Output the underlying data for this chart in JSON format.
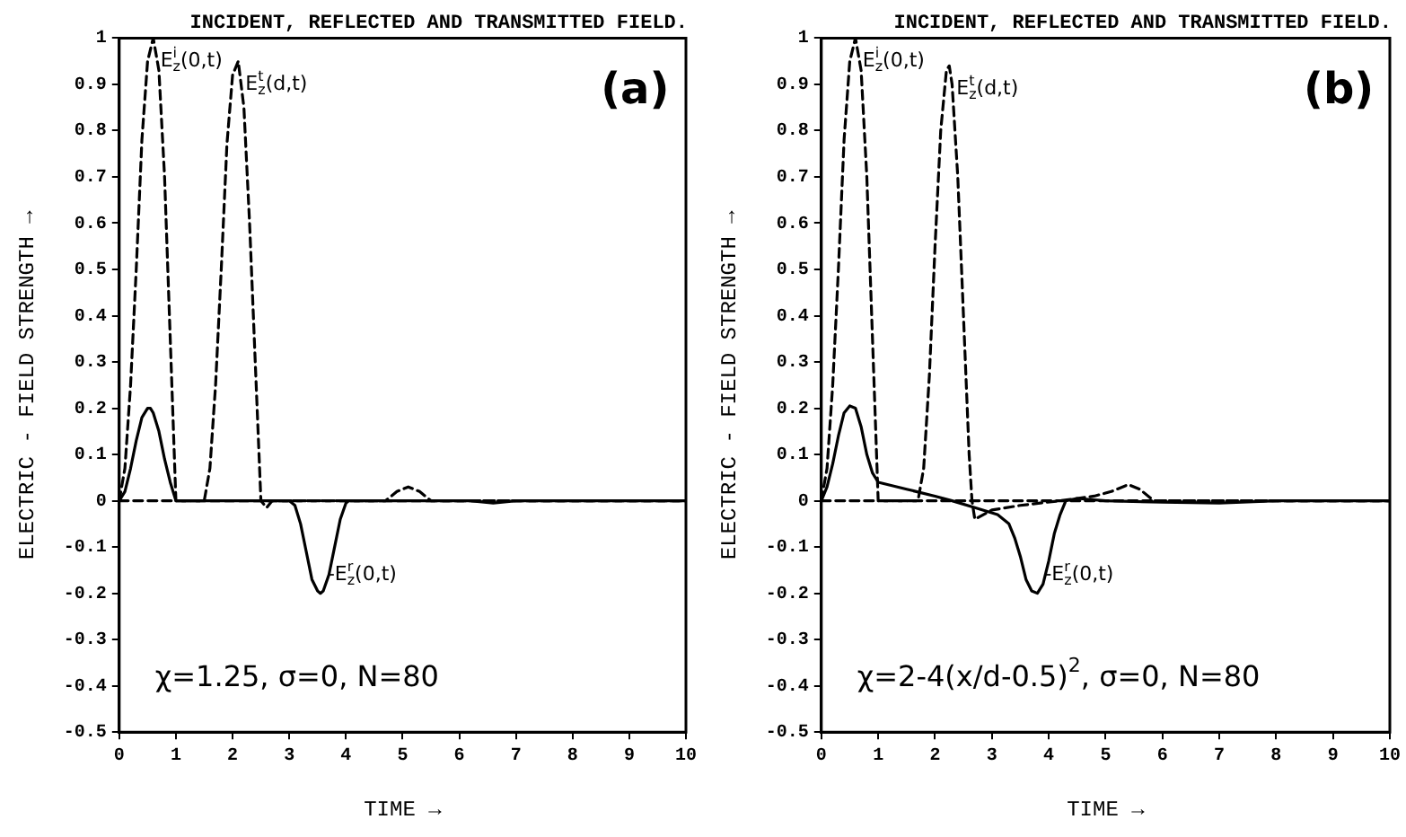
{
  "chart_data": [
    {
      "type": "line",
      "title": "INCIDENT, REFLECTED AND TRANSMITTED FIELD.",
      "xlabel": "TIME →",
      "ylabel": "ELECTRIC - FIELD STRENGTH →",
      "annotations": [
        "(a)",
        "χ=1.25, σ=0, N=80"
      ],
      "xlim": [
        0,
        10
      ],
      "ylim": [
        -0.5,
        1
      ],
      "xticks": [
        0,
        1,
        2,
        3,
        4,
        5,
        6,
        7,
        8,
        9,
        10
      ],
      "yticks": [
        -0.5,
        -0.4,
        -0.3,
        -0.2,
        -0.1,
        0,
        0.1,
        0.2,
        0.3,
        0.4,
        0.5,
        0.6,
        0.7,
        0.8,
        0.9,
        1
      ],
      "grid": false,
      "legend": false,
      "marker": "none",
      "series": [
        {
          "name": "E$^{i}$$_{z}$(0,t)",
          "color": "#000000",
          "line_style": "dashed",
          "x": [
            0,
            0.1,
            0.2,
            0.3,
            0.4,
            0.5,
            0.6,
            0.7,
            0.8,
            0.9,
            1.0,
            10
          ],
          "values": [
            0,
            0.07,
            0.25,
            0.5,
            0.78,
            0.95,
            1.0,
            0.93,
            0.7,
            0.35,
            0,
            0
          ]
        },
        {
          "name": "E$^{t}$$_{z}$(d,t)",
          "color": "#000000",
          "line_style": "dashed",
          "x": [
            0,
            1.5,
            1.6,
            1.7,
            1.8,
            1.9,
            2.0,
            2.1,
            2.2,
            2.3,
            2.4,
            2.5,
            2.6,
            2.7,
            4.7,
            4.9,
            5.1,
            5.3,
            5.5,
            10
          ],
          "values": [
            0,
            0,
            0.07,
            0.25,
            0.5,
            0.77,
            0.92,
            0.95,
            0.85,
            0.6,
            0.3,
            0,
            -0.015,
            0,
            0,
            0.02,
            0.03,
            0.02,
            0,
            0
          ]
        },
        {
          "name": "-E$^{r}$$_{z}$(0,t)",
          "color": "#000000",
          "line_style": "solid",
          "x": [
            0,
            0.1,
            0.2,
            0.3,
            0.4,
            0.5,
            0.55,
            0.6,
            0.7,
            0.8,
            0.9,
            1.0,
            3.0,
            3.1,
            3.2,
            3.3,
            3.4,
            3.5,
            3.55,
            3.6,
            3.7,
            3.8,
            3.9,
            4.0,
            4.05,
            6.2,
            6.6,
            7.0,
            10
          ],
          "values": [
            0,
            0.02,
            0.07,
            0.13,
            0.18,
            0.2,
            0.2,
            0.19,
            0.15,
            0.09,
            0.04,
            0,
            0,
            -0.01,
            -0.05,
            -0.11,
            -0.17,
            -0.195,
            -0.2,
            -0.195,
            -0.16,
            -0.1,
            -0.04,
            -0.005,
            0,
            0,
            -0.005,
            0,
            0
          ]
        }
      ]
    },
    {
      "type": "line",
      "title": "INCIDENT, REFLECTED AND TRANSMITTED FIELD.",
      "xlabel": "TIME →",
      "ylabel": "ELECTRIC - FIELD STRENGTH →",
      "annotations": [
        "(b)",
        "χ=2-4(x/d-0.5)$^{2}$, σ=0, N=80"
      ],
      "xlim": [
        0,
        10
      ],
      "ylim": [
        -0.5,
        1
      ],
      "xticks": [
        0,
        1,
        2,
        3,
        4,
        5,
        6,
        7,
        8,
        9,
        10
      ],
      "yticks": [
        -0.5,
        -0.4,
        -0.3,
        -0.2,
        -0.1,
        0,
        0.1,
        0.2,
        0.3,
        0.4,
        0.5,
        0.6,
        0.7,
        0.8,
        0.9,
        1
      ],
      "grid": false,
      "legend": false,
      "marker": "none",
      "series": [
        {
          "name": "E$^{i}$$_{z}$(0,t)",
          "color": "#000000",
          "line_style": "dashed",
          "x": [
            0,
            0.1,
            0.2,
            0.3,
            0.4,
            0.5,
            0.6,
            0.7,
            0.8,
            0.9,
            1.0,
            10
          ],
          "values": [
            0,
            0.07,
            0.25,
            0.5,
            0.78,
            0.95,
            1.0,
            0.93,
            0.7,
            0.35,
            0,
            0
          ]
        },
        {
          "name": "E$^{t}$$_{z}$(d,t)",
          "color": "#000000",
          "line_style": "dashed",
          "x": [
            0,
            1.7,
            1.8,
            1.9,
            2.0,
            2.1,
            2.2,
            2.25,
            2.3,
            2.4,
            2.5,
            2.6,
            2.65,
            2.7,
            3.0,
            3.5,
            4.2,
            4.8,
            5.1,
            5.4,
            5.6,
            5.85,
            10
          ],
          "values": [
            0,
            0,
            0.07,
            0.27,
            0.55,
            0.8,
            0.93,
            0.94,
            0.9,
            0.7,
            0.4,
            0.1,
            0,
            -0.04,
            -0.02,
            -0.01,
            0,
            0.01,
            0.02,
            0.035,
            0.025,
            0,
            0
          ]
        },
        {
          "name": "-E$^{r}$$_{z}$(0,t)",
          "color": "#000000",
          "line_style": "solid",
          "x": [
            0,
            0.1,
            0.2,
            0.3,
            0.4,
            0.5,
            0.6,
            0.7,
            0.8,
            0.9,
            1.0,
            1.5,
            2.0,
            2.3,
            2.7,
            3.1,
            3.3,
            3.4,
            3.5,
            3.6,
            3.7,
            3.8,
            3.9,
            4.0,
            4.1,
            4.2,
            4.3,
            4.5,
            5.0,
            6.0,
            7.0,
            8.0,
            10
          ],
          "values": [
            0,
            0.03,
            0.08,
            0.14,
            0.19,
            0.205,
            0.2,
            0.16,
            0.1,
            0.06,
            0.04,
            0.025,
            0.01,
            0,
            -0.015,
            -0.03,
            -0.05,
            -0.08,
            -0.12,
            -0.17,
            -0.195,
            -0.2,
            -0.18,
            -0.13,
            -0.07,
            -0.03,
            0,
            0.005,
            0,
            -0.003,
            -0.005,
            0,
            0
          ]
        }
      ]
    }
  ]
}
